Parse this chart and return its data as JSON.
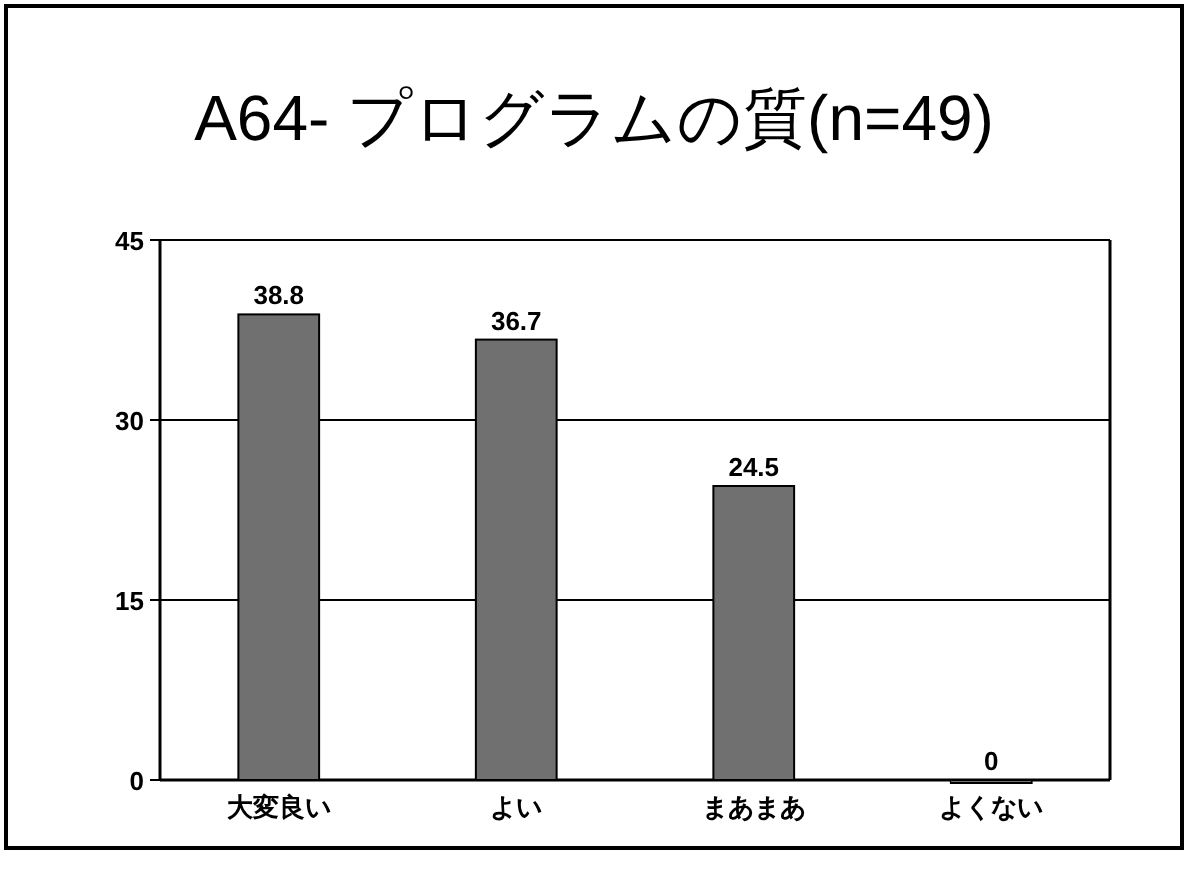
{
  "chart_data": {
    "type": "bar",
    "title": "A64- プログラムの質(n=49)",
    "categories": [
      "大変良い",
      "よい",
      "まあまあ",
      "よくない"
    ],
    "values": [
      38.8,
      36.7,
      24.5,
      0
    ],
    "color": "#707070",
    "ylim": [
      0,
      45
    ],
    "yticks": [
      0,
      15,
      30,
      45
    ],
    "grid": "y",
    "data_labels": true
  }
}
